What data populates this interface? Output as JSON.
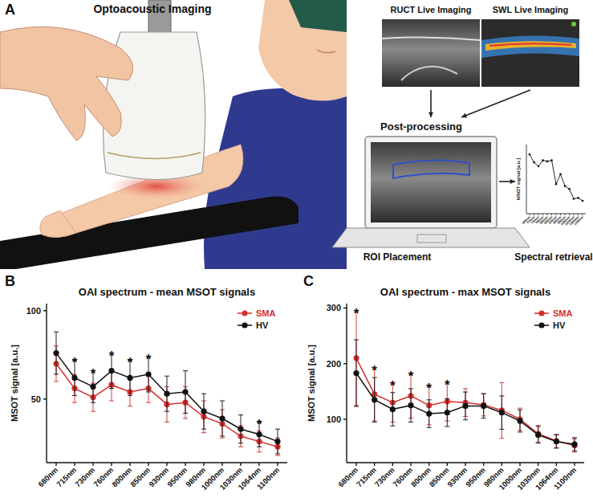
{
  "figure": {
    "panel_labels": [
      "A",
      "B",
      "C"
    ],
    "panel_a": {
      "title": "Optoacoustic Imaging",
      "ruct_label": "RUCT Live Imaging",
      "swl_label": "SWL Live Imaging",
      "post_processing": "Post-processing",
      "roi_label": "ROI Placement",
      "spectral_label": "Spectral retrieval"
    }
  },
  "chart_data": [
    {
      "type": "line",
      "title": "OAI spectrum - mean MSOT signals",
      "y_label": "MSOT signal [a.u.]",
      "categories": [
        "680nm",
        "715nm",
        "730nm",
        "760nm",
        "800nm",
        "850nm",
        "930nm",
        "950nm",
        "980nm",
        "1000nm",
        "1030nm",
        "1064nm",
        "1100nm"
      ],
      "ylim": [
        14,
        104
      ],
      "yticks": [
        50,
        100
      ],
      "legend": "top-right",
      "marker": "circle",
      "series": [
        {
          "name": "SMA",
          "color": "#d62f2f",
          "values": [
            70,
            56,
            51,
            58,
            54,
            56,
            47,
            48,
            40,
            36,
            29,
            26,
            23
          ],
          "errors": [
            10,
            8,
            8,
            9,
            8,
            8,
            10,
            9,
            9,
            8,
            6,
            6,
            5
          ]
        },
        {
          "name": "HV",
          "color": "#111111",
          "values": [
            76,
            62,
            57,
            66,
            62,
            64,
            53,
            54,
            43,
            39,
            33,
            30,
            26
          ],
          "errors": [
            12,
            10,
            9,
            10,
            10,
            10,
            10,
            12,
            10,
            10,
            8,
            7,
            7
          ]
        }
      ],
      "annotations": [
        {
          "x": "715nm",
          "text": "*"
        },
        {
          "x": "730nm",
          "text": "*"
        },
        {
          "x": "760nm",
          "text": "*"
        },
        {
          "x": "800nm",
          "text": "*"
        },
        {
          "x": "850nm",
          "text": "*"
        },
        {
          "x": "1064nm",
          "text": "*"
        }
      ]
    },
    {
      "type": "line",
      "title": "OAI spectrum - max MSOT signals",
      "y_label": "MSOT signal [a.u.]",
      "categories": [
        "680nm",
        "715nm",
        "730nm",
        "760nm",
        "800nm",
        "850nm",
        "930nm",
        "950nm",
        "980nm",
        "1000nm",
        "1030nm",
        "1064nm",
        "1100nm"
      ],
      "ylim": [
        22,
        308
      ],
      "yticks": [
        100,
        200,
        300
      ],
      "legend": "top-right",
      "marker": "circle",
      "series": [
        {
          "name": "SMA",
          "color": "#d62f2f",
          "values": [
            210,
            145,
            130,
            142,
            125,
            132,
            130,
            126,
            116,
            100,
            74,
            61,
            53
          ],
          "errors": [
            85,
            48,
            35,
            40,
            35,
            35,
            25,
            20,
            50,
            20,
            15,
            12,
            12
          ]
        },
        {
          "name": "HV",
          "color": "#111111",
          "values": [
            183,
            135,
            118,
            125,
            110,
            112,
            124,
            124,
            112,
            97,
            72,
            60,
            55
          ],
          "errors": [
            60,
            40,
            30,
            30,
            25,
            25,
            25,
            22,
            30,
            20,
            15,
            12,
            12
          ]
        }
      ],
      "annotations": [
        {
          "x": "680nm",
          "text": "*"
        },
        {
          "x": "715nm",
          "text": "*"
        },
        {
          "x": "730nm",
          "text": "*"
        },
        {
          "x": "760nm",
          "text": "*"
        },
        {
          "x": "800nm",
          "text": "*"
        },
        {
          "x": "850nm",
          "text": "*"
        }
      ]
    },
    {
      "type": "line",
      "y_label": "MSOT signal [a.u.]",
      "categories": [
        "680nm",
        "715nm",
        "730nm",
        "760nm",
        "800nm",
        "850nm",
        "930nm",
        "950nm",
        "980nm",
        "1000nm",
        "1030nm",
        "1064nm",
        "1100nm"
      ],
      "ylim": [
        0.3,
        1
      ],
      "tick_labels": "x",
      "marker": "circle",
      "series": [
        {
          "color": "#111111",
          "values": [
            0.9,
            0.82,
            0.78,
            0.84,
            0.83,
            0.84,
            0.6,
            0.7,
            0.58,
            0.55,
            0.45,
            0.46,
            0.43
          ]
        }
      ]
    }
  ]
}
